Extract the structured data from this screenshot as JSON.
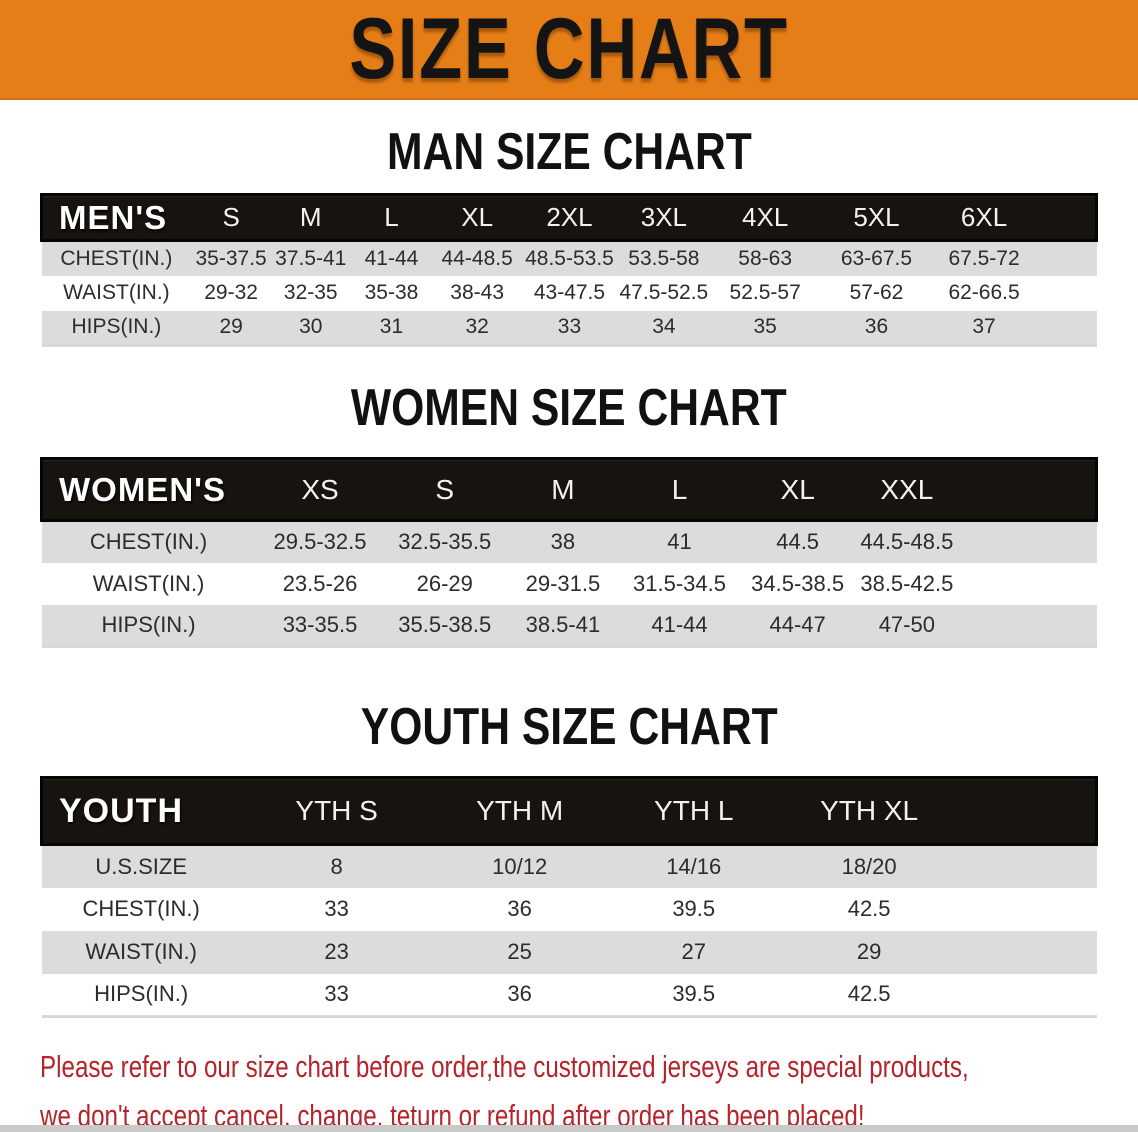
{
  "banner": {
    "title": "SIZE CHART"
  },
  "colors": {
    "banner_bg": "#E67E17",
    "header_bar": "#17130F",
    "row_gray": "#DCDCDC",
    "row_white": "#FFFFFF",
    "footer_red": "#B5242A"
  },
  "sections": [
    {
      "heading": "MAN SIZE CHART",
      "table": {
        "label": "MEN'S",
        "sizes": [
          "S",
          "M",
          "L",
          "XL",
          "2XL",
          "3XL",
          "4XL",
          "5XL",
          "6XL"
        ],
        "rows": [
          {
            "label": "CHEST(IN.)",
            "values": [
              "35-37.5",
              "37.5-41",
              "41-44",
              "44-48.5",
              "48.5-53.5",
              "53.5-58",
              "58-63",
              "63-67.5",
              "67.5-72"
            ]
          },
          {
            "label": "WAIST(IN.)",
            "values": [
              "29-32",
              "32-35",
              "35-38",
              "38-43",
              "43-47.5",
              "47.5-52.5",
              "52.5-57",
              "57-62",
              "62-66.5"
            ]
          },
          {
            "label": "HIPS(IN.)",
            "values": [
              "29",
              "30",
              "31",
              "32",
              "33",
              "34",
              "35",
              "36",
              "37"
            ]
          }
        ]
      }
    },
    {
      "heading": "WOMEN SIZE CHART",
      "table": {
        "label": "WOMEN'S",
        "sizes": [
          "XS",
          "S",
          "M",
          "L",
          "XL",
          "XXL"
        ],
        "rows": [
          {
            "label": "CHEST(IN.)",
            "values": [
              "29.5-32.5",
              "32.5-35.5",
              "38",
              "41",
              "44.5",
              "44.5-48.5"
            ]
          },
          {
            "label": "WAIST(IN.)",
            "values": [
              "23.5-26",
              "26-29",
              "29-31.5",
              "31.5-34.5",
              "34.5-38.5",
              "38.5-42.5"
            ]
          },
          {
            "label": "HIPS(IN.)",
            "values": [
              "33-35.5",
              "35.5-38.5",
              "38.5-41",
              "41-44",
              "44-47",
              "47-50"
            ]
          }
        ]
      }
    },
    {
      "heading": "YOUTH SIZE CHART",
      "table": {
        "label": "YOUTH",
        "sizes": [
          "YTH S",
          "YTH M",
          "YTH L",
          "YTH XL"
        ],
        "rows": [
          {
            "label": "U.S.SIZE",
            "values": [
              "8",
              "10/12",
              "14/16",
              "18/20"
            ]
          },
          {
            "label": "CHEST(IN.)",
            "values": [
              "33",
              "36",
              "39.5",
              "42.5"
            ]
          },
          {
            "label": "WAIST(IN.)",
            "values": [
              "23",
              "25",
              "27",
              "29"
            ]
          },
          {
            "label": "HIPS(IN.)",
            "values": [
              "33",
              "36",
              "39.5",
              "42.5"
            ]
          }
        ]
      }
    }
  ],
  "footer": {
    "line1": "Please refer to our size chart before order,the customized jerseys are special products,",
    "line2": "we don't accept cancel, change, teturn or refund after order has been placed!"
  }
}
